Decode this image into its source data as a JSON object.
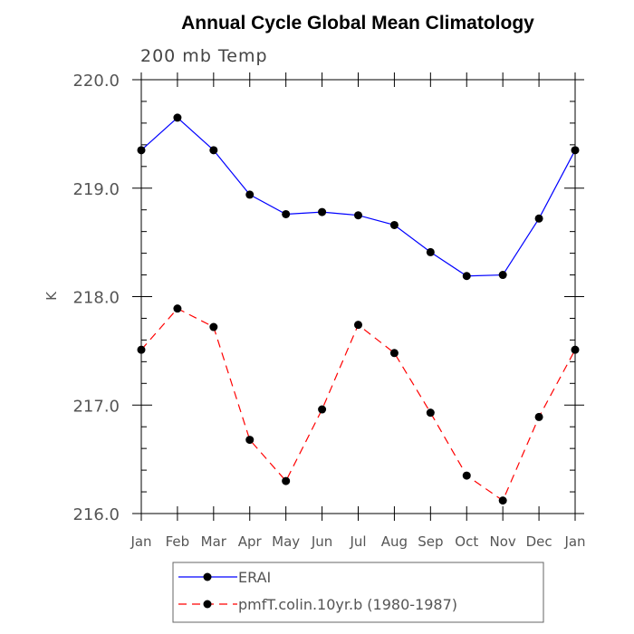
{
  "chart_data": {
    "type": "line",
    "title": "Annual Cycle Global Mean Climatology",
    "subtitle": "200 mb Temp",
    "ylabel": "K",
    "xlabel": "",
    "ylim": [
      216.0,
      220.0
    ],
    "yticks": [
      "216.0",
      "217.0",
      "218.0",
      "219.0",
      "220.0"
    ],
    "yminor_step": 0.2,
    "categories": [
      "Jan",
      "Feb",
      "Mar",
      "Apr",
      "May",
      "Jun",
      "Jul",
      "Aug",
      "Sep",
      "Oct",
      "Nov",
      "Dec",
      "Jan"
    ],
    "grid": false,
    "legend_position": "bottom",
    "series": [
      {
        "name": "ERAI",
        "color": "#0000ff",
        "dashed": false,
        "values": [
          219.35,
          219.65,
          219.35,
          218.94,
          218.76,
          218.78,
          218.75,
          218.66,
          218.41,
          218.19,
          218.2,
          218.72,
          219.35
        ]
      },
      {
        "name": "pmfT.colin.10yr.b (1980-1987)",
        "color": "#ff0000",
        "dashed": true,
        "values": [
          217.51,
          217.89,
          217.72,
          216.68,
          216.3,
          216.96,
          217.74,
          217.48,
          216.93,
          216.35,
          216.12,
          216.89,
          217.51
        ]
      }
    ]
  }
}
